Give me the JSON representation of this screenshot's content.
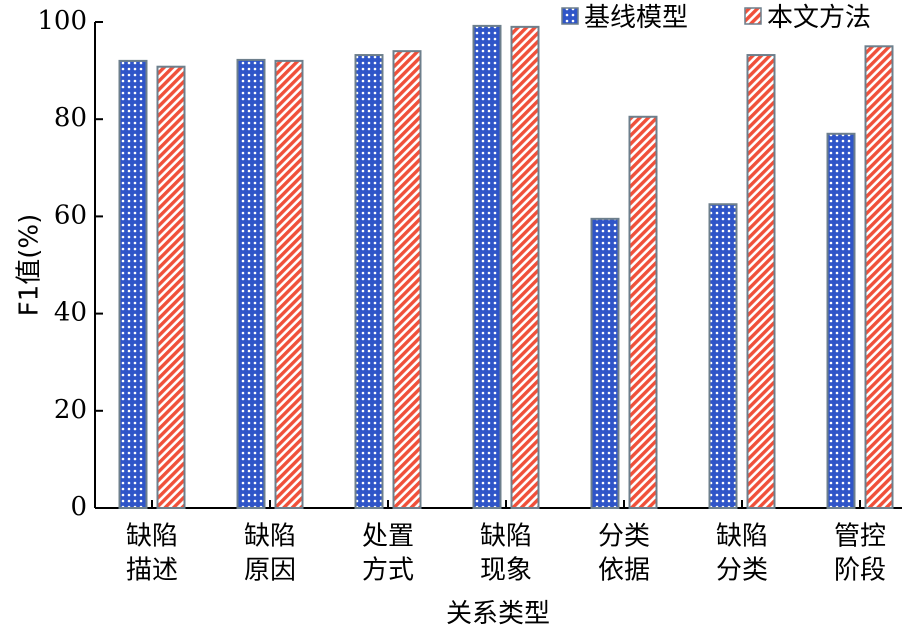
{
  "chart_data": {
    "type": "bar",
    "title": "",
    "xlabel": "关系类型",
    "ylabel": "F1值(%)",
    "ylim": [
      0,
      100
    ],
    "yticks": [
      "0",
      "20",
      "40",
      "60",
      "80",
      "100"
    ],
    "categories": [
      [
        "缺陷",
        "描述"
      ],
      [
        "缺陷",
        "原因"
      ],
      [
        "处置",
        "方式"
      ],
      [
        "缺陷",
        "现象"
      ],
      [
        "分类",
        "依据"
      ],
      [
        "缺陷",
        "分类"
      ],
      [
        "管控",
        "阶段"
      ]
    ],
    "series": [
      {
        "name": "基线模型",
        "color": "#2f55c8",
        "pattern": "dots",
        "values": [
          92,
          92.2,
          93.2,
          99.2,
          59.5,
          62.5,
          77
        ]
      },
      {
        "name": "本文方法",
        "color": "#f0503a",
        "pattern": "stripes",
        "values": [
          90.8,
          92,
          94,
          99,
          80.5,
          93.2,
          95
        ]
      }
    ],
    "legend_position": "top-right",
    "grid": false
  }
}
